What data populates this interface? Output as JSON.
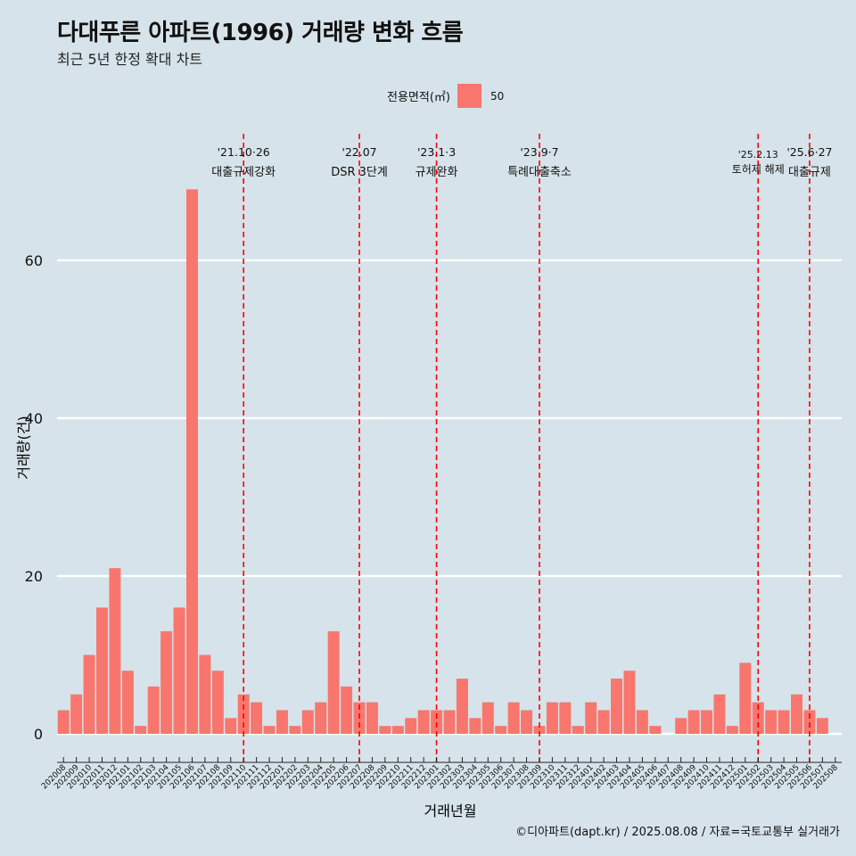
{
  "header": {
    "title": "다대푸른 아파트(1996) 거래량 변화 흐름",
    "subtitle": "최근 5년 한정 확대 차트"
  },
  "legend": {
    "title": "전용면적(㎡)",
    "entries": [
      "50"
    ]
  },
  "caption": "©디아파트(dapt.kr) / 2025.08.08 / 자료=국토교통부 실거래가",
  "colors": {
    "background": "#d6e3ea",
    "bar": "#f8766d",
    "grid": "#ffffff",
    "event_line": "#ff0000"
  },
  "chart_data": {
    "type": "bar",
    "xlabel": "거래년월",
    "ylabel": "거래량(건)",
    "ylim": [
      0,
      71
    ],
    "yticks": [
      0,
      20,
      40,
      60
    ],
    "grid": true,
    "legend_position": "top",
    "categories": [
      "202008",
      "202009",
      "202010",
      "202011",
      "202012",
      "202101",
      "202102",
      "202103",
      "202104",
      "202105",
      "202106",
      "202107",
      "202108",
      "202109",
      "202110",
      "202111",
      "202112",
      "202201",
      "202202",
      "202203",
      "202204",
      "202205",
      "202206",
      "202207",
      "202208",
      "202209",
      "202210",
      "202211",
      "202212",
      "202301",
      "202302",
      "202303",
      "202304",
      "202305",
      "202306",
      "202307",
      "202308",
      "202309",
      "202310",
      "202311",
      "202312",
      "202401",
      "202402",
      "202403",
      "202404",
      "202405",
      "202406",
      "202407",
      "202408",
      "202409",
      "202410",
      "202411",
      "202412",
      "202501",
      "202502",
      "202503",
      "202504",
      "202505",
      "202506",
      "202507",
      "202508"
    ],
    "series": [
      {
        "name": "50",
        "values": [
          3,
          5,
          10,
          16,
          21,
          8,
          1,
          6,
          13,
          16,
          69,
          10,
          8,
          2,
          5,
          4,
          1,
          3,
          1,
          3,
          4,
          13,
          6,
          4,
          4,
          1,
          1,
          2,
          3,
          3,
          3,
          7,
          2,
          4,
          1,
          4,
          3,
          1,
          4,
          4,
          1,
          4,
          3,
          7,
          8,
          3,
          1,
          0,
          2,
          3,
          3,
          5,
          1,
          9,
          4,
          3,
          3,
          5,
          3,
          2,
          0
        ]
      }
    ],
    "annotations": [
      {
        "at": "202110",
        "date": "'21.10·26",
        "label": "대출규제강화"
      },
      {
        "at": "202207",
        "date": "'22.07",
        "label": "DSR 3단계"
      },
      {
        "at": "202301",
        "date": "'23.1·3",
        "label": "규제완화"
      },
      {
        "at": "202309",
        "date": "'23.9·7",
        "label": "특례대출축소"
      },
      {
        "at": "202502",
        "date": "'25.2.13",
        "label": "토허제 해제"
      },
      {
        "at": "202506",
        "date": "'25.6·27",
        "label": "대출규제"
      }
    ]
  }
}
